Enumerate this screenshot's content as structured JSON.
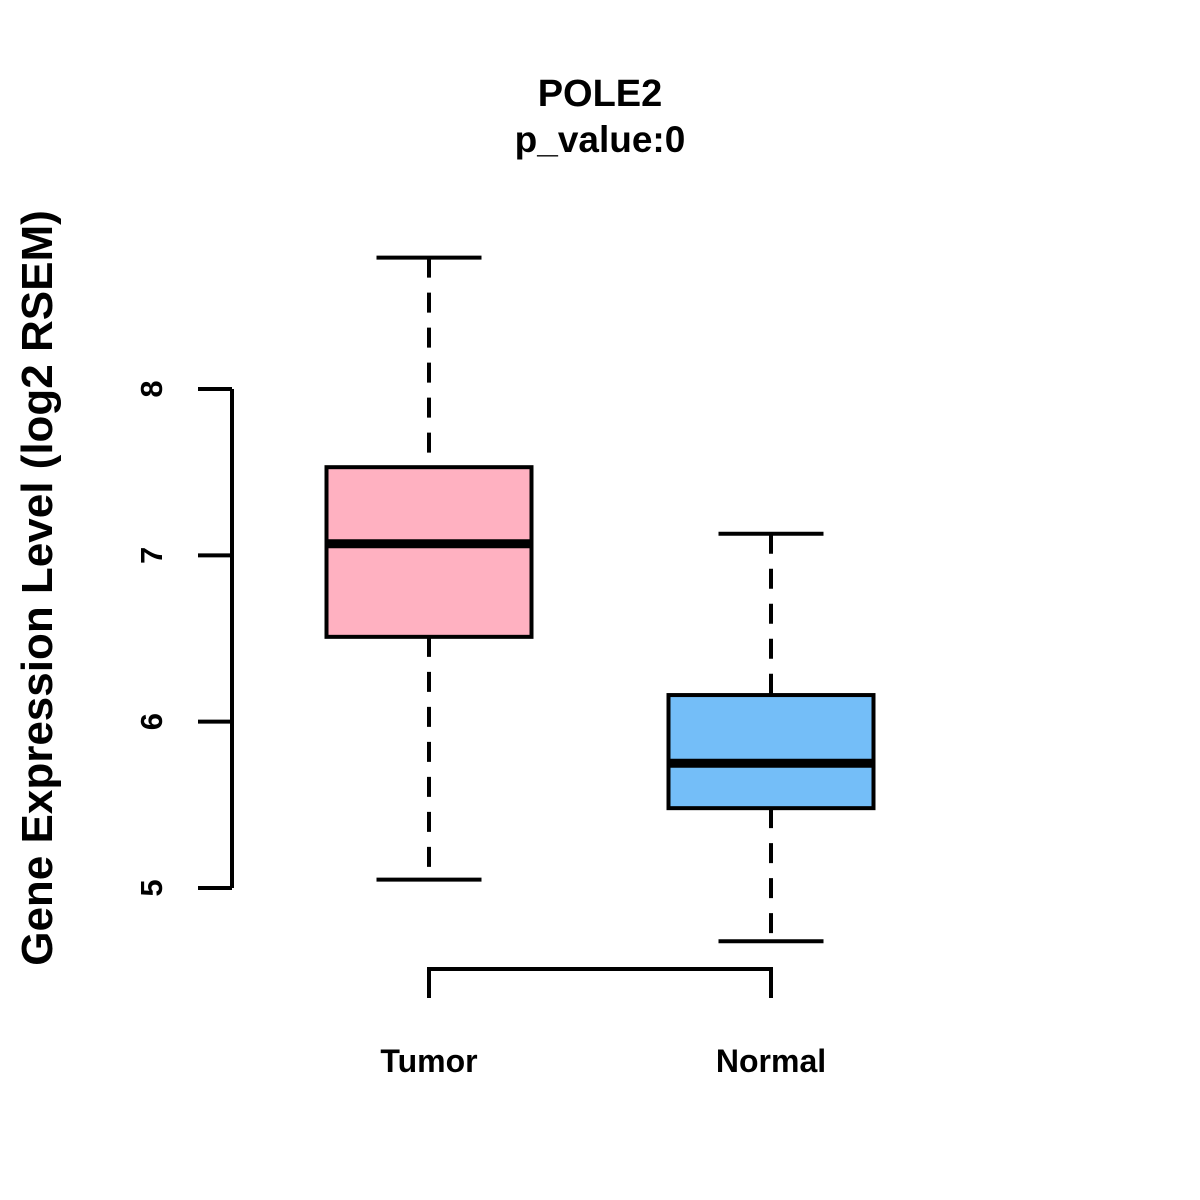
{
  "chart_data": {
    "type": "boxplot",
    "title": "POLE2",
    "subtitle": "p_value:0",
    "ylabel": "Gene Expression Level (log2 RSEM)",
    "xlabel": "",
    "categories": [
      "Tumor",
      "Normal"
    ],
    "yticks": [
      5,
      6,
      7,
      8
    ],
    "ylim": [
      4.4,
      8.9
    ],
    "grid": false,
    "legend": "none",
    "background_color": "#FFFFFF",
    "stroke_color": "#000000",
    "series": [
      {
        "name": "Tumor",
        "fill_color": "#FFB1C1",
        "whisker_low": 5.05,
        "q1": 6.51,
        "median": 7.07,
        "q3": 7.53,
        "whisker_high": 8.79,
        "outliers": []
      },
      {
        "name": "Normal",
        "fill_color": "#74BEF8",
        "whisker_low": 4.68,
        "q1": 5.48,
        "median": 5.75,
        "q3": 6.16,
        "whisker_high": 7.13,
        "outliers": []
      }
    ]
  }
}
